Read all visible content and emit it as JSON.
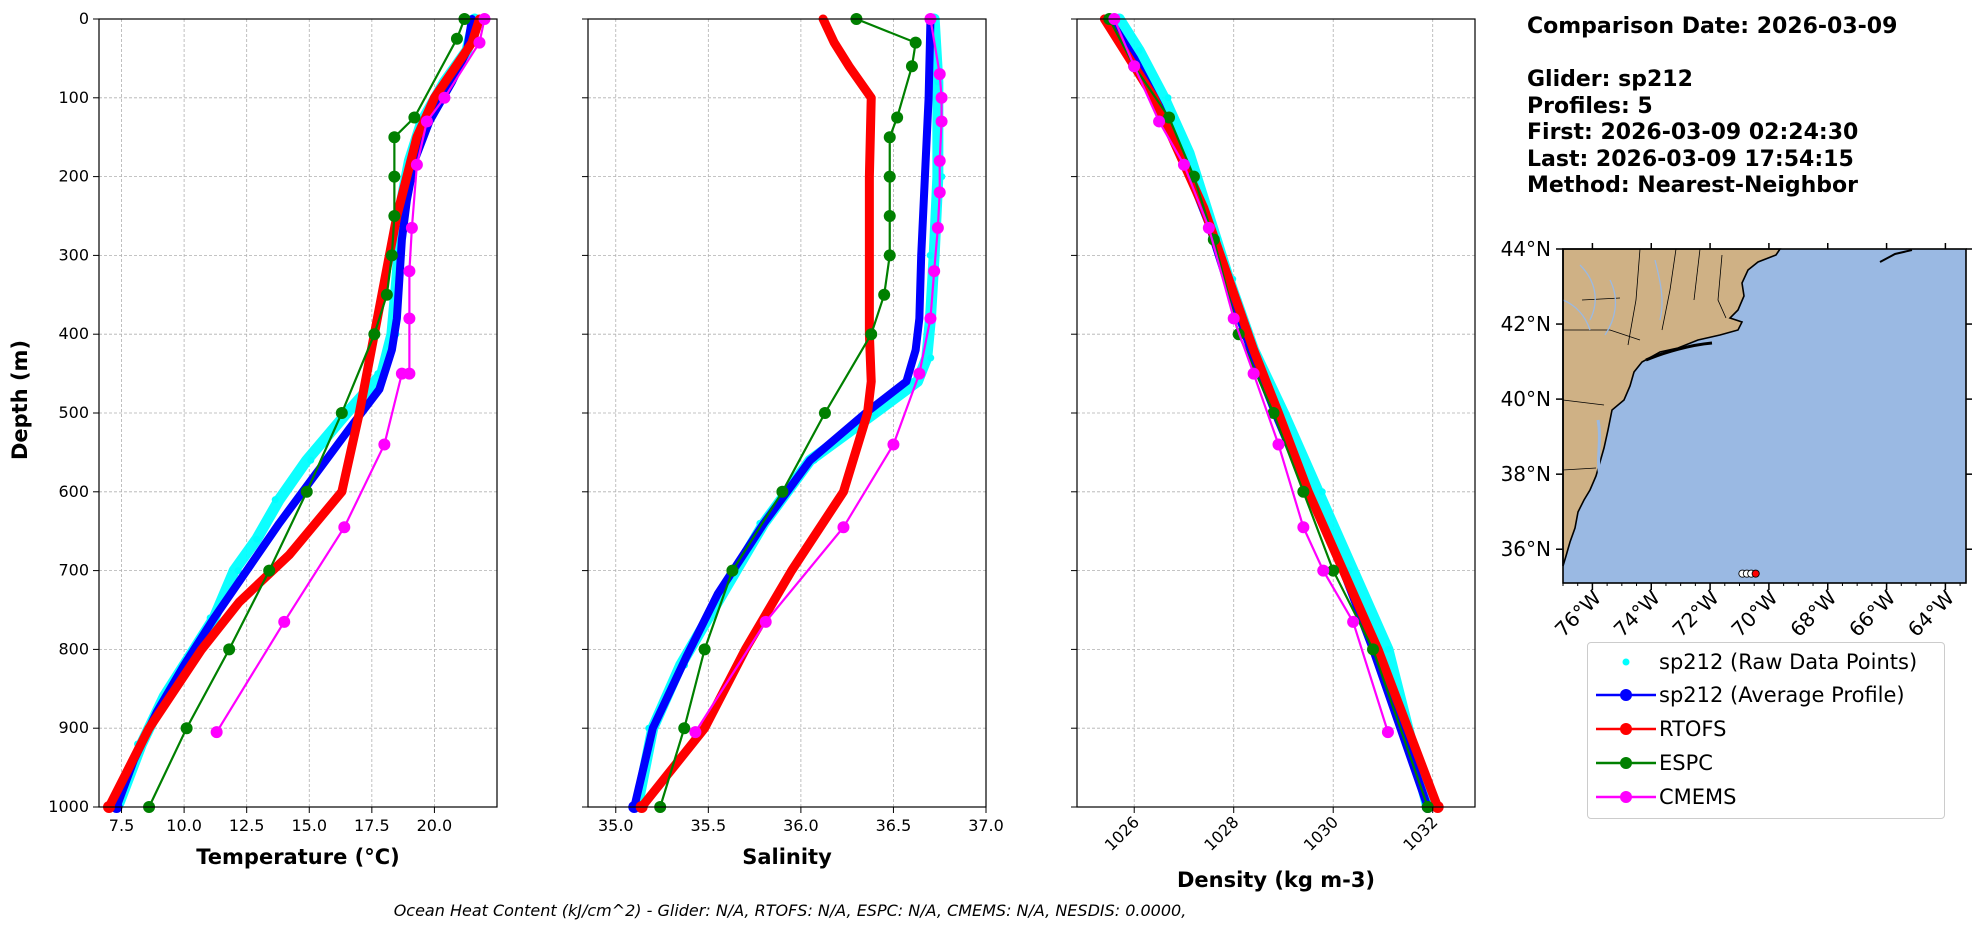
{
  "chart_data": [
    {
      "type": "line",
      "xlabel": "Temperature (°C)",
      "ylabel": "Depth (m)",
      "xlim": [
        6.6,
        22.5
      ],
      "ylim": [
        1000,
        0
      ],
      "xticks": [
        "7.5",
        "10.0",
        "12.5",
        "15.0",
        "17.5",
        "20.0"
      ],
      "xtick_values": [
        7.5,
        10,
        12.5,
        15,
        17.5,
        20
      ],
      "yticks": [
        "0",
        "100",
        "200",
        "300",
        "400",
        "500",
        "600",
        "700",
        "800",
        "900",
        "1000"
      ],
      "yaxis_position": "left",
      "grid": true,
      "series": [
        {
          "name": "sp212 (Raw Data Points)",
          "color": "#00ffff",
          "kind": "raw",
          "x": [
            21.6,
            21.3,
            20.4,
            19.5,
            19.0,
            18.7,
            18.6,
            18.5,
            18.3,
            17.9,
            16.5,
            14.9,
            13.8,
            12.9,
            12.0,
            11.2,
            10.2,
            9.2,
            8.3,
            7.4
          ],
          "y": [
            0,
            40,
            80,
            130,
            180,
            230,
            280,
            330,
            400,
            450,
            500,
            560,
            610,
            660,
            700,
            760,
            810,
            860,
            920,
            995
          ]
        },
        {
          "name": "sp212 (Average Profile)",
          "color": "#0000ff",
          "kind": "thick",
          "x": [
            21.5,
            21.3,
            20.7,
            19.8,
            19.2,
            18.9,
            18.7,
            18.6,
            18.5,
            18.3,
            17.8,
            16.6,
            15.2,
            13.8,
            12.5,
            11.2,
            10.0,
            8.9,
            8.0,
            7.3
          ],
          "y": [
            0,
            40,
            80,
            130,
            180,
            230,
            280,
            330,
            380,
            420,
            470,
            520,
            580,
            640,
            700,
            760,
            820,
            880,
            940,
            1000
          ]
        },
        {
          "name": "RTOFS",
          "color": "#ff0000",
          "kind": "thick",
          "x": [
            21.8,
            21.5,
            20.0,
            19.3,
            18.9,
            18.5,
            18.2,
            17.9,
            17.6,
            17.0,
            16.3,
            14.2,
            12.2,
            10.7,
            8.6,
            7.0
          ],
          "y": [
            0,
            30,
            100,
            150,
            200,
            250,
            300,
            350,
            400,
            500,
            600,
            680,
            740,
            800,
            900,
            1000
          ]
        },
        {
          "name": "ESPC",
          "color": "#008000",
          "kind": "marker",
          "x": [
            21.2,
            20.9,
            19.2,
            18.4,
            18.4,
            18.4,
            18.3,
            18.1,
            17.6,
            16.3,
            14.9,
            13.4,
            11.8,
            10.1,
            8.6
          ],
          "y": [
            0,
            25,
            125,
            150,
            200,
            250,
            300,
            350,
            400,
            500,
            600,
            700,
            800,
            900,
            1000
          ]
        },
        {
          "name": "CMEMS",
          "color": "#ff00ff",
          "kind": "marker",
          "x": [
            22.0,
            21.8,
            20.4,
            19.7,
            19.3,
            19.1,
            19.0,
            19.0,
            19.0,
            18.7,
            18.0,
            16.4,
            14.0,
            11.3
          ],
          "y": [
            0,
            30,
            100,
            130,
            185,
            265,
            320,
            380,
            450,
            450,
            540,
            645,
            765,
            905
          ]
        }
      ]
    },
    {
      "type": "line",
      "xlabel": "Salinity",
      "ylabel": "",
      "xlim": [
        34.85,
        37.0
      ],
      "ylim": [
        1000,
        0
      ],
      "xticks": [
        "35.0",
        "35.5",
        "36.0",
        "36.5",
        "37.0"
      ],
      "xtick_values": [
        35.0,
        35.5,
        36.0,
        36.5,
        37.0
      ],
      "yticks": [],
      "grid": true,
      "series": [
        {
          "name": "sp212 (Raw Data Points)",
          "color": "#00ffff",
          "kind": "raw",
          "x": [
            36.72,
            36.74,
            36.74,
            36.72,
            36.7,
            36.68,
            36.63,
            36.4,
            36.05,
            35.8,
            35.55,
            35.35,
            35.2,
            35.12
          ],
          "y": [
            0,
            80,
            200,
            300,
            380,
            430,
            460,
            500,
            560,
            640,
            740,
            820,
            900,
            995
          ]
        },
        {
          "name": "sp212 (Average Profile)",
          "color": "#0000ff",
          "kind": "thick",
          "x": [
            36.7,
            36.69,
            36.67,
            36.65,
            36.64,
            36.62,
            36.57,
            36.35,
            36.05,
            35.8,
            35.55,
            35.38,
            35.2,
            35.1
          ],
          "y": [
            0,
            100,
            200,
            300,
            380,
            420,
            460,
            500,
            560,
            640,
            730,
            810,
            900,
            1000
          ]
        },
        {
          "name": "RTOFS",
          "color": "#ff0000",
          "kind": "thick",
          "x": [
            36.12,
            36.18,
            36.26,
            36.38,
            36.37,
            36.37,
            36.37,
            36.38,
            36.36,
            36.23,
            35.95,
            35.7,
            35.48,
            35.14
          ],
          "y": [
            0,
            30,
            60,
            100,
            200,
            300,
            400,
            460,
            500,
            600,
            700,
            800,
            900,
            1000
          ]
        },
        {
          "name": "ESPC",
          "color": "#008000",
          "kind": "marker",
          "x": [
            36.3,
            36.62,
            36.6,
            36.52,
            36.48,
            36.48,
            36.48,
            36.48,
            36.45,
            36.38,
            36.13,
            35.9,
            35.63,
            35.48,
            35.37,
            35.24
          ],
          "y": [
            0,
            30,
            60,
            125,
            150,
            200,
            250,
            300,
            350,
            400,
            500,
            600,
            700,
            800,
            900,
            1000
          ]
        },
        {
          "name": "CMEMS",
          "color": "#ff00ff",
          "kind": "marker",
          "x": [
            36.7,
            36.75,
            36.76,
            36.76,
            36.75,
            36.75,
            36.74,
            36.72,
            36.7,
            36.64,
            36.5,
            36.23,
            35.81,
            35.43
          ],
          "y": [
            0,
            70,
            100,
            130,
            180,
            220,
            265,
            320,
            380,
            450,
            540,
            645,
            765,
            905
          ]
        }
      ]
    },
    {
      "type": "line",
      "xlabel": "Density (kg m-3)",
      "ylabel": "",
      "xlim": [
        1024.85,
        1032.85
      ],
      "ylim": [
        1000,
        0
      ],
      "xticks": [
        "1026",
        "1028",
        "1030",
        "1032"
      ],
      "xtick_values": [
        1026,
        1028,
        1030,
        1032
      ],
      "xtick_rotation": 45,
      "yticks": [],
      "grid": true,
      "series": [
        {
          "name": "sp212 (Raw Data Points)",
          "color": "#00ffff",
          "kind": "raw",
          "x": [
            1025.7,
            1026.1,
            1026.6,
            1027.1,
            1027.5,
            1027.9,
            1028.4,
            1029.0,
            1029.7,
            1030.4,
            1031.1,
            1031.9
          ],
          "y": [
            0,
            40,
            100,
            170,
            250,
            330,
            420,
            500,
            600,
            700,
            800,
            1000
          ]
        },
        {
          "name": "sp212 (Average Profile)",
          "color": "#0000ff",
          "kind": "thick",
          "x": [
            1025.5,
            1026.0,
            1026.5,
            1027.0,
            1027.5,
            1027.9,
            1028.4,
            1028.9,
            1029.5,
            1030.2,
            1030.8,
            1031.9
          ],
          "y": [
            0,
            50,
            110,
            180,
            260,
            340,
            430,
            510,
            600,
            700,
            800,
            1000
          ]
        },
        {
          "name": "RTOFS",
          "color": "#ff0000",
          "kind": "thick",
          "x": [
            1025.4,
            1025.9,
            1026.4,
            1026.9,
            1027.4,
            1027.9,
            1028.4,
            1028.9,
            1029.5,
            1030.2,
            1030.9,
            1031.5,
            1032.1
          ],
          "y": [
            0,
            50,
            100,
            170,
            240,
            330,
            420,
            500,
            600,
            700,
            800,
            900,
            1000
          ]
        },
        {
          "name": "ESPC",
          "color": "#008000",
          "kind": "marker",
          "x": [
            1025.5,
            1026.0,
            1026.7,
            1027.2,
            1027.6,
            1028.1,
            1028.8,
            1029.4,
            1030.0,
            1030.8,
            1031.9
          ],
          "y": [
            0,
            60,
            125,
            200,
            280,
            400,
            500,
            600,
            700,
            800,
            1000
          ]
        },
        {
          "name": "CMEMS",
          "color": "#ff00ff",
          "kind": "marker",
          "x": [
            1025.6,
            1026.0,
            1026.5,
            1027.0,
            1027.5,
            1028.0,
            1028.4,
            1028.9,
            1029.4,
            1029.8,
            1030.4,
            1031.1
          ],
          "y": [
            0,
            60,
            130,
            185,
            265,
            380,
            450,
            540,
            645,
            700,
            765,
            905
          ]
        }
      ]
    }
  ],
  "info": {
    "comparison_date": "Comparison Date: 2026-03-09",
    "glider": "Glider: sp212",
    "profiles": "Profiles: 5",
    "first": "First: 2026-03-09 02:24:30",
    "last": "Last: 2026-03-09 17:54:15",
    "method": "Method: Nearest-Neighbor"
  },
  "map": {
    "lat_labels": [
      "44°N",
      "42°N",
      "40°N",
      "38°N",
      "36°N"
    ],
    "lat_values": [
      44,
      42,
      40,
      38,
      36
    ],
    "lon_labels": [
      "76°W",
      "74°W",
      "72°W",
      "70°W",
      "68°W",
      "66°W",
      "64°W"
    ],
    "lon_values": [
      -76,
      -74,
      -72,
      -70,
      -68,
      -66,
      -64
    ],
    "extent": {
      "lon_min": -77,
      "lon_max": -63.3,
      "lat_min": 35.1,
      "lat_max": 44
    },
    "ocean_color": "#9ab9e3",
    "land_color": "#cfb185",
    "glider_points": [
      {
        "lon": -70.9,
        "lat": 35.35,
        "color": "#ffffff"
      },
      {
        "lon": -70.75,
        "lat": 35.35,
        "color": "#ffffff"
      },
      {
        "lon": -70.6,
        "lat": 35.35,
        "color": "#ffffff"
      },
      {
        "lon": -70.45,
        "lat": 35.35,
        "color": "#ff0000"
      }
    ]
  },
  "legend": {
    "items": [
      {
        "label": "sp212 (Raw Data Points)",
        "color": "#00ffff",
        "kind": "raw"
      },
      {
        "label": "sp212 (Average Profile)",
        "color": "#0000ff",
        "kind": "line"
      },
      {
        "label": "RTOFS",
        "color": "#ff0000",
        "kind": "line"
      },
      {
        "label": "ESPC",
        "color": "#008000",
        "kind": "line"
      },
      {
        "label": "CMEMS",
        "color": "#ff00ff",
        "kind": "line"
      }
    ]
  },
  "footer": "Ocean Heat Content (kJ/cm^2) - Glider: N/A,  RTOFS: N/A,  ESPC: N/A,  CMEMS: N/A,  NESDIS: 0.0000,"
}
